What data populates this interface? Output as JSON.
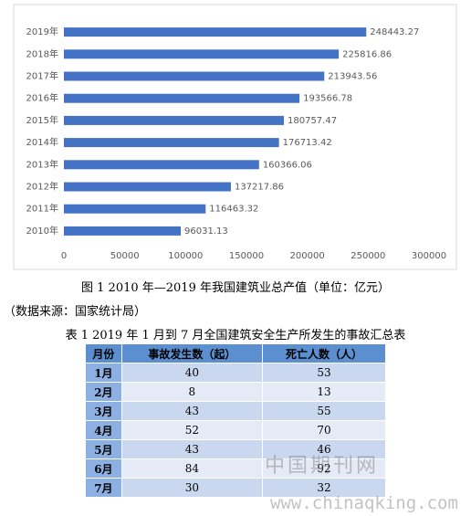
{
  "chart_data": {
    "type": "bar",
    "orientation": "horizontal",
    "categories": [
      "2019年",
      "2018年",
      "2017年",
      "2016年",
      "2015年",
      "2014年",
      "2013年",
      "2012年",
      "2011年",
      "2010年"
    ],
    "values": [
      248443.27,
      225816.86,
      213943.56,
      193566.78,
      180757.47,
      176713.42,
      160366.06,
      137217.86,
      116463.32,
      96031.13
    ],
    "color": "#4472c4",
    "xlim": [
      0,
      300000
    ],
    "xticks": [
      0,
      50000,
      100000,
      150000,
      200000,
      250000,
      300000
    ],
    "grid": false
  },
  "caption": "图 1 2010 年—2019 年我国建筑业总产值（单位：亿元）",
  "source": "（数据来源：国家统计局）",
  "table": {
    "title": "表 1 2019 年 1 月到 7 月全国建筑安全生产所发生的事故汇总表",
    "header": [
      "月份",
      "事故发生数（起）",
      "死亡人数（人）"
    ],
    "rows": [
      [
        "1月",
        40,
        53
      ],
      [
        "2月",
        8,
        13
      ],
      [
        "3月",
        43,
        55
      ],
      [
        "4月",
        52,
        70
      ],
      [
        "5月",
        43,
        46
      ],
      [
        "6月",
        84,
        92
      ],
      [
        "7月",
        30,
        32
      ]
    ]
  },
  "watermark": {
    "logo": "中国期刊网",
    "url": "www.chinaqking.com"
  }
}
